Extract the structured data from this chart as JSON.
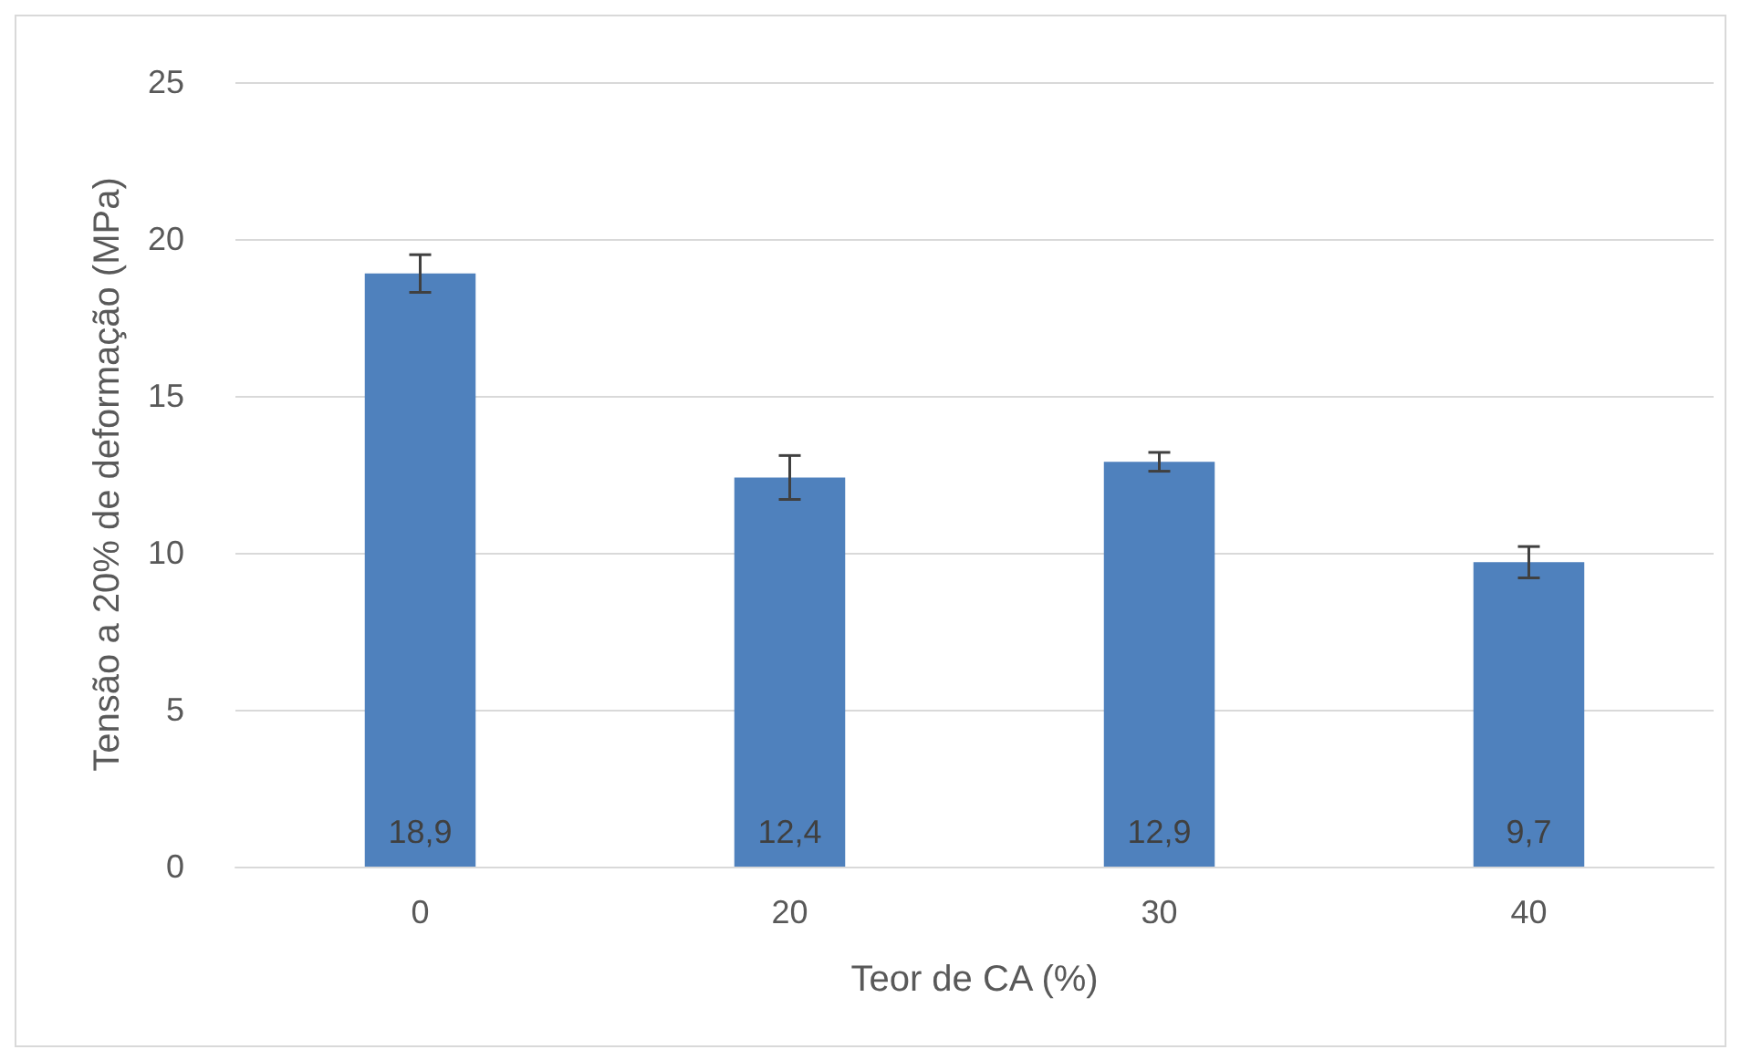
{
  "chart_data": {
    "type": "bar",
    "xlabel": "Teor de CA (%)",
    "ylabel": "Tensão a 20% de deformação (MPa)",
    "categories": [
      "0",
      "20",
      "30",
      "40"
    ],
    "values": [
      18.9,
      12.4,
      12.9,
      9.7
    ],
    "errors": [
      0.6,
      0.7,
      0.3,
      0.5
    ],
    "value_labels": [
      "18,9",
      "12,4",
      "12,9",
      "9,7"
    ],
    "color": "#4f81bd",
    "ylim": [
      0,
      25
    ],
    "yticks": [
      0,
      5,
      10,
      15,
      20,
      25
    ],
    "grid": "y"
  }
}
